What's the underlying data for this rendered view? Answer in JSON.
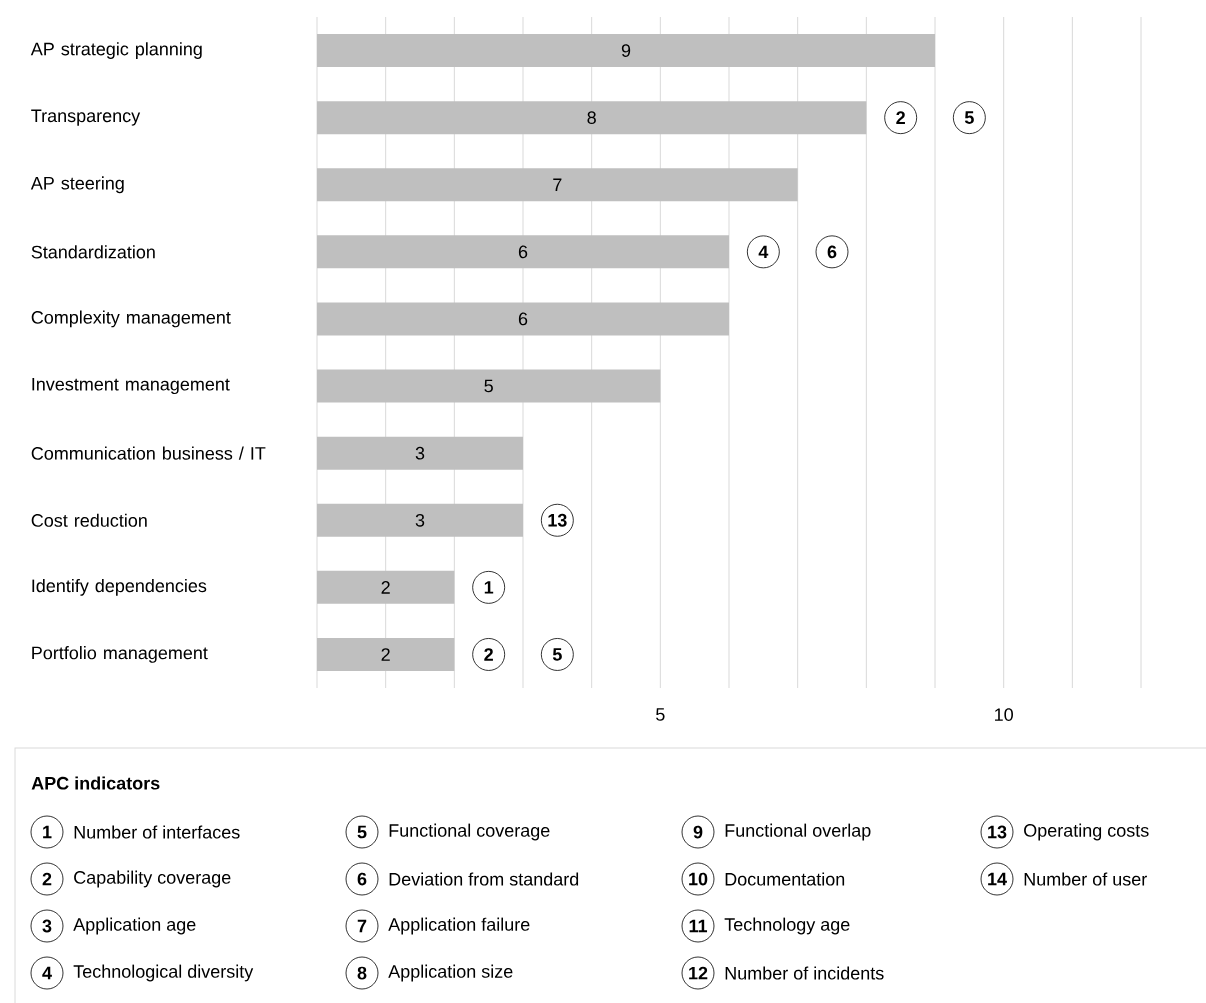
{
  "chart_data": {
    "type": "bar",
    "orientation": "horizontal",
    "color": "#bfbfbf",
    "data_labels": true,
    "grid": "x",
    "legend_title": "APC indicators",
    "categories": [
      "AP strategic planning",
      "Transparency",
      "AP steering",
      "Standardization",
      "Complexity management",
      "Investment management",
      "Communication business / IT",
      "Cost reduction",
      "Identify dependencies",
      "Portfolio management"
    ],
    "values": [
      9,
      8,
      7,
      6,
      6,
      5,
      3,
      3,
      2,
      2
    ],
    "xlim": [
      0,
      12
    ],
    "xticks": [
      {
        "value": 0,
        "label": null
      },
      {
        "value": 1,
        "label": null
      },
      {
        "value": 2,
        "label": null
      },
      {
        "value": 3,
        "label": null
      },
      {
        "value": 4,
        "label": null
      },
      5,
      {
        "value": 6,
        "label": null
      },
      {
        "value": 7,
        "label": null
      },
      {
        "value": 8,
        "label": null
      },
      {
        "value": 9,
        "label": null
      },
      10,
      {
        "value": 11,
        "label": null
      },
      {
        "value": 12,
        "label": null
      }
    ],
    "annotations": [
      {
        "text": "2",
        "x": 8.5,
        "y": "Transparency"
      },
      {
        "text": "5",
        "x": 9.5,
        "y": "Transparency"
      },
      {
        "text": "4",
        "x": 6.5,
        "y": "Standardization"
      },
      {
        "text": "6",
        "x": 7.5,
        "y": "Standardization"
      },
      {
        "text": "13",
        "x": 3.5,
        "y": "Cost reduction"
      },
      {
        "text": "1",
        "x": 2.5,
        "y": "Identify dependencies"
      },
      {
        "text": "2",
        "x": 2.5,
        "y": "Portfolio management"
      },
      {
        "text": "5",
        "x": 3.5,
        "y": "Portfolio management"
      },
      "1",
      "Number of interfaces",
      "2",
      "Capability coverage",
      "3",
      "Application age",
      "4",
      "Technological diversity",
      "5",
      "Functional coverage",
      "6",
      "Deviation from standard",
      "7",
      "Application failure",
      "8",
      "Application size",
      "9",
      "Functional overlap",
      "10",
      "Documentation",
      "11",
      "Technology age",
      "12",
      "Number of incidents",
      "13",
      "Operating costs",
      "14",
      "Number of user"
    ]
  }
}
